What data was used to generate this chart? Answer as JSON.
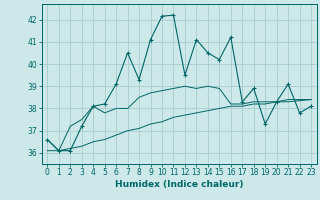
{
  "xlabel": "Humidex (Indice chaleur)",
  "xlim": [
    -0.5,
    23.5
  ],
  "ylim": [
    35.5,
    42.7
  ],
  "yticks": [
    36,
    37,
    38,
    39,
    40,
    41,
    42
  ],
  "xticks": [
    0,
    1,
    2,
    3,
    4,
    5,
    6,
    7,
    8,
    9,
    10,
    11,
    12,
    13,
    14,
    15,
    16,
    17,
    18,
    19,
    20,
    21,
    22,
    23
  ],
  "bg_color": "#cce8e8",
  "line_color": "#006666",
  "grid_color": "#aacccc",
  "line1_x": [
    0,
    1,
    2,
    3,
    4,
    5,
    6,
    7,
    8,
    9,
    10,
    11,
    12,
    13,
    14,
    15,
    16,
    17,
    18,
    19,
    20,
    21,
    22,
    23
  ],
  "line1_y": [
    36.6,
    36.1,
    36.1,
    37.2,
    38.1,
    38.2,
    39.1,
    40.5,
    39.3,
    41.1,
    42.15,
    42.2,
    39.5,
    41.1,
    40.5,
    40.2,
    41.2,
    38.3,
    38.9,
    37.3,
    38.3,
    39.1,
    37.8,
    38.1
  ],
  "line2_x": [
    0,
    1,
    2,
    3,
    4,
    5,
    6,
    7,
    8,
    9,
    10,
    11,
    12,
    13,
    14,
    15,
    16,
    17,
    18,
    19,
    20,
    21,
    22,
    23
  ],
  "line2_y": [
    36.6,
    36.1,
    37.2,
    37.5,
    38.1,
    37.8,
    38.0,
    38.0,
    38.5,
    38.7,
    38.8,
    38.9,
    39.0,
    38.9,
    39.0,
    38.9,
    38.2,
    38.2,
    38.3,
    38.3,
    38.3,
    38.4,
    38.4,
    38.4
  ],
  "line3_x": [
    0,
    1,
    2,
    3,
    4,
    5,
    6,
    7,
    8,
    9,
    10,
    11,
    12,
    13,
    14,
    15,
    16,
    17,
    18,
    19,
    20,
    21,
    22,
    23
  ],
  "line3_y": [
    36.1,
    36.1,
    36.2,
    36.3,
    36.5,
    36.6,
    36.8,
    37.0,
    37.1,
    37.3,
    37.4,
    37.6,
    37.7,
    37.8,
    37.9,
    38.0,
    38.1,
    38.1,
    38.2,
    38.2,
    38.3,
    38.3,
    38.35,
    38.4
  ]
}
